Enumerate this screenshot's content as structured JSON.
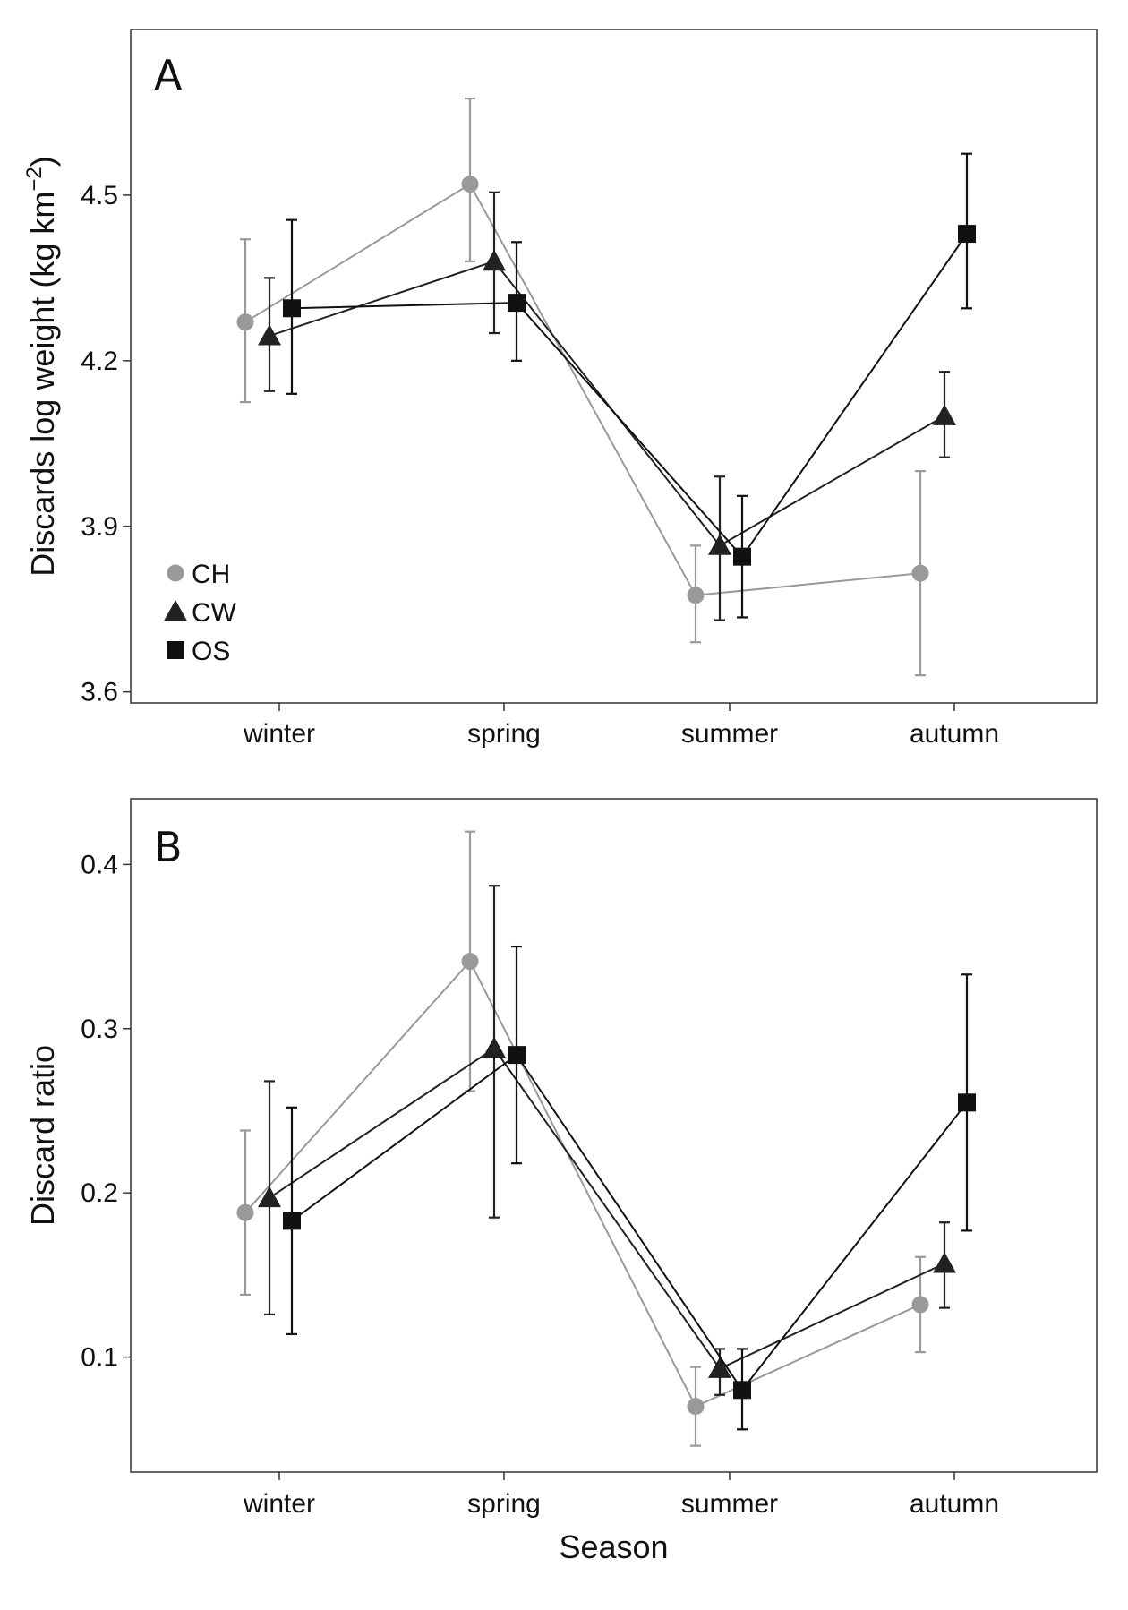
{
  "chart_data": [
    {
      "type": "line",
      "panel_label": "A",
      "categories": [
        "winter",
        "spring",
        "summer",
        "autumn"
      ],
      "xlabel": "",
      "ylabel": "Discards log weight (kg km",
      "ylabel_exponent": "−2",
      "ylabel_suffix": ")",
      "ylim": [
        3.58,
        4.8
      ],
      "yticks": [
        3.6,
        3.9,
        4.2,
        4.5
      ],
      "ytick_labels": [
        "3.6",
        "3.9",
        "4.2",
        "4.5"
      ],
      "grid": false,
      "legend_position": "bottom-left",
      "series": [
        {
          "name": "CH",
          "marker": "circle",
          "color": "#999999",
          "values": [
            4.27,
            4.52,
            3.775,
            3.815
          ],
          "lower": [
            4.125,
            4.38,
            3.69,
            3.63
          ],
          "upper": [
            4.42,
            4.675,
            3.865,
            4.0
          ]
        },
        {
          "name": "CW",
          "marker": "triangle",
          "color": "#222222",
          "values": [
            4.245,
            4.38,
            3.865,
            4.1
          ],
          "lower": [
            4.145,
            4.25,
            3.73,
            4.025
          ],
          "upper": [
            4.35,
            4.505,
            3.99,
            4.18
          ]
        },
        {
          "name": "OS",
          "marker": "square",
          "color": "#111111",
          "values": [
            4.295,
            4.305,
            3.845,
            4.43
          ],
          "lower": [
            4.14,
            4.2,
            3.735,
            4.295
          ],
          "upper": [
            4.455,
            4.415,
            3.955,
            4.575
          ]
        }
      ]
    },
    {
      "type": "line",
      "panel_label": "B",
      "categories": [
        "winter",
        "spring",
        "summer",
        "autumn"
      ],
      "xlabel": "Season",
      "ylabel": "Discard ratio",
      "ylim": [
        0.03,
        0.44
      ],
      "yticks": [
        0.1,
        0.2,
        0.3,
        0.4
      ],
      "ytick_labels": [
        "0.1",
        "0.2",
        "0.3",
        "0.4"
      ],
      "grid": false,
      "series": [
        {
          "name": "CH",
          "marker": "circle",
          "color": "#999999",
          "values": [
            0.188,
            0.341,
            0.07,
            0.132
          ],
          "lower": [
            0.138,
            0.262,
            0.046,
            0.103
          ],
          "upper": [
            0.238,
            0.42,
            0.094,
            0.161
          ]
        },
        {
          "name": "CW",
          "marker": "triangle",
          "color": "#222222",
          "values": [
            0.197,
            0.288,
            0.093,
            0.157
          ],
          "lower": [
            0.126,
            0.185,
            0.077,
            0.13
          ],
          "upper": [
            0.268,
            0.387,
            0.105,
            0.182
          ]
        },
        {
          "name": "OS",
          "marker": "square",
          "color": "#111111",
          "values": [
            0.183,
            0.284,
            0.08,
            0.255
          ],
          "lower": [
            0.114,
            0.218,
            0.056,
            0.177
          ],
          "upper": [
            0.252,
            0.35,
            0.105,
            0.333
          ]
        }
      ]
    }
  ]
}
